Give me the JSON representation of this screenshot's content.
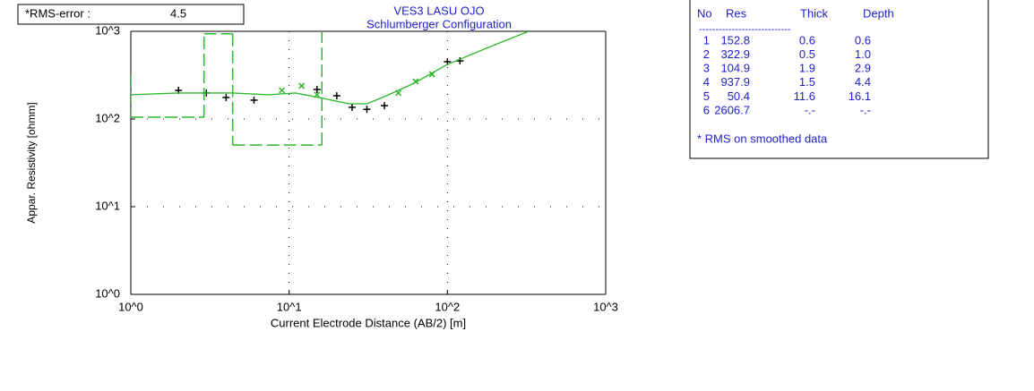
{
  "chart_data": {
    "type": "loglog",
    "title": "VES3 LASU OJO",
    "subtitle": "Schlumberger Configuration",
    "xlabel": "Current Electrode Distance (AB/2) [m]",
    "ylabel": "Appar. Resistivity [ohmm]",
    "xlim": [
      1,
      1000
    ],
    "ylim": [
      1,
      1000
    ],
    "log_x": true,
    "log_y": true,
    "grid": true,
    "xticks": [
      {
        "value": 1,
        "label": "10^0"
      },
      {
        "value": 10,
        "label": "10^1"
      },
      {
        "value": 100,
        "label": "10^2"
      },
      {
        "value": 1000,
        "label": "10^3"
      }
    ],
    "yticks": [
      {
        "value": 1,
        "label": "10^0"
      },
      {
        "value": 10,
        "label": "10^1"
      },
      {
        "value": 100,
        "label": "10^2"
      },
      {
        "value": 1000,
        "label": "10^3"
      }
    ],
    "rms_label": "*RMS-error :",
    "rms": 4.5,
    "series": [
      {
        "marker": "+",
        "color": "#000000",
        "x": [
          2,
          3,
          4,
          6,
          15,
          20,
          25,
          31,
          40,
          100,
          120
        ],
        "values": [
          212,
          198,
          176,
          164,
          217,
          184,
          136,
          129,
          142,
          450,
          460
        ]
      },
      {
        "marker": "x",
        "color": "#2db82d",
        "x": [
          9,
          12,
          15,
          49,
          63,
          80
        ],
        "values": [
          212,
          239,
          189,
          198,
          268,
          324
        ]
      },
      {
        "marker": "line",
        "color": "#2db82d",
        "x": [
          1,
          2,
          4.4,
          7.4,
          11,
          16.3,
          24,
          31,
          40,
          60,
          100,
          170,
          326
        ],
        "values": [
          189,
          198,
          198,
          189,
          198,
          172,
          149,
          149,
          180,
          250,
          419,
          625,
          1000
        ]
      }
    ],
    "layers": {
      "color": "#2db82d",
      "header": [
        "No",
        "Res",
        "Thick",
        "Depth"
      ],
      "rule": "----------------------------",
      "no": [
        1,
        2,
        3,
        4,
        5,
        6
      ],
      "res": [
        152.8,
        322.9,
        104.9,
        937.9,
        50.4,
        2606.7
      ],
      "thick": [
        0.6,
        0.5,
        1.9,
        1.5,
        11.6,
        "-.-"
      ],
      "depth": [
        0.6,
        {
          "value": 1.0,
          "label": "1.0"
        },
        2.9,
        4.4,
        16.1,
        "-.-"
      ],
      "note": "* RMS on smoothed data"
    }
  }
}
